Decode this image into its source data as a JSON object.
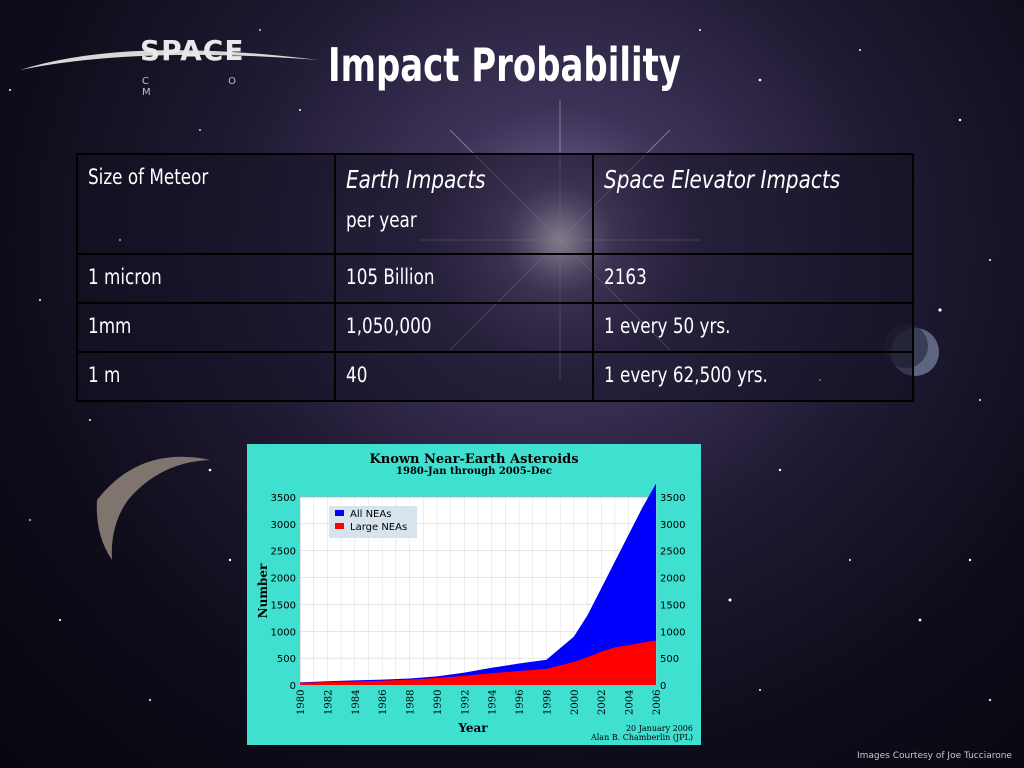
{
  "slide": {
    "title": "Impact Probability",
    "logo": {
      "word": "SPACE",
      "sub": "C O M"
    },
    "credit": "Images Courtesy of Joe Tucciarone"
  },
  "table": {
    "headers": {
      "col1": "Size of Meteor",
      "col2": "Earth Impacts",
      "col2_sub": "per year",
      "col3": "Space Elevator Impacts"
    },
    "rows": [
      {
        "size": "1 micron",
        "earth": "105 Billion",
        "elevator": "2163"
      },
      {
        "size": "1mm",
        "earth": "1,050,000",
        "elevator": "1 every 50 yrs."
      },
      {
        "size": "1 m",
        "earth": "40",
        "elevator": "1 every 62,500 yrs."
      }
    ]
  },
  "chart_data": {
    "type": "area",
    "title": "Known Near-Earth Asteroids",
    "subtitle": "1980-Jan through 2005-Dec",
    "xlabel": "Year",
    "ylabel": "Number",
    "xlim": [
      1980,
      2006
    ],
    "ylim": [
      0,
      3500
    ],
    "x_ticks": [
      "1980",
      "1982",
      "1984",
      "1986",
      "1988",
      "1990",
      "1992",
      "1994",
      "1996",
      "1998",
      "2000",
      "2002",
      "2004",
      "2006"
    ],
    "y_ticks": [
      "0",
      "500",
      "1000",
      "1500",
      "2000",
      "2500",
      "3000",
      "3500"
    ],
    "grid": true,
    "legend_position": "top-left",
    "x": [
      1980,
      1982,
      1984,
      1986,
      1988,
      1990,
      1992,
      1994,
      1996,
      1998,
      2000,
      2001,
      2002,
      2003,
      2004,
      2005,
      2006
    ],
    "series": [
      {
        "name": "All NEAs",
        "color": "#0000ff",
        "values": [
          50,
          70,
          85,
          100,
          120,
          160,
          230,
          320,
          400,
          470,
          900,
          1300,
          1800,
          2300,
          2800,
          3300,
          3750
        ]
      },
      {
        "name": "Large NEAs",
        "color": "#ff0000",
        "values": [
          40,
          55,
          65,
          80,
          100,
          130,
          170,
          220,
          260,
          300,
          430,
          520,
          620,
          700,
          740,
          790,
          830
        ]
      }
    ],
    "annotation": [
      "20 January 2006",
      "Alan B. Chamberlin (JPL)"
    ]
  }
}
